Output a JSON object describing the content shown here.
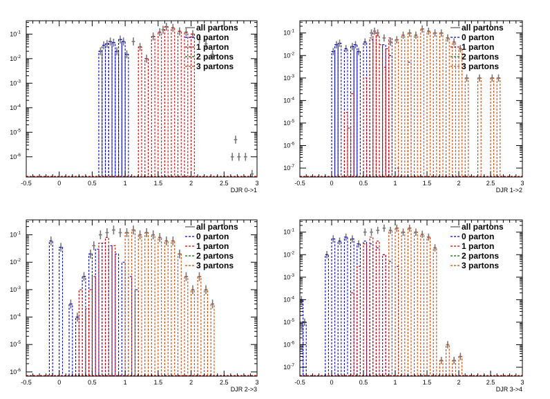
{
  "legend": [
    "all partons",
    "0 parton",
    "1 parton",
    "2 partons",
    "3 partons"
  ],
  "colors": {
    "all": "#777777",
    "p0": "#0000cc",
    "p1": "#cc0000",
    "p2": "#006600",
    "p3": "#cc4400",
    "frame": "#000000"
  },
  "chart_data": [
    {
      "type": "bar",
      "xlabel": "DJR 0->1",
      "xlim": [
        -0.5,
        3
      ],
      "ylog": true,
      "ylim": [
        1.5e-07,
        0.35
      ],
      "x_ticks": [
        "-0.5",
        "0",
        "0.5",
        "1",
        "1.5",
        "2",
        "2.5",
        "3"
      ],
      "y_ticks": [
        {
          "label": "10",
          "exp": "-6",
          "value": 1e-06
        },
        {
          "label": "10",
          "exp": "-5",
          "value": 1e-05
        },
        {
          "label": "10",
          "exp": "-4",
          "value": 0.0001
        },
        {
          "label": "10",
          "exp": "-3",
          "value": 0.001
        },
        {
          "label": "10",
          "exp": "-2",
          "value": 0.01
        },
        {
          "label": "10",
          "exp": "-1",
          "value": 0.1
        }
      ],
      "series": [
        {
          "name": "all partons",
          "key": "all",
          "x": [
            0.6,
            0.65,
            0.7,
            0.75,
            0.8,
            0.85,
            0.9,
            0.95,
            1.0,
            1.1,
            1.2,
            1.3,
            1.4,
            1.5,
            1.55,
            1.6,
            1.7,
            1.8,
            1.9,
            2.0,
            2.1,
            2.2,
            2.3,
            2.6,
            2.65,
            2.7,
            2.8,
            2.9
          ],
          "y": [
            0.02,
            0.035,
            0.04,
            0.05,
            0.045,
            0.02,
            0.06,
            0.05,
            0.015,
            0.05,
            0.03,
            0.01,
            0.08,
            0.12,
            0.15,
            0.2,
            0.18,
            0.13,
            0.12,
            0.1,
            0.06,
            0.04,
            0.015,
            1e-06,
            5e-06,
            1e-06,
            1e-06,
            2e-07
          ]
        },
        {
          "name": "0 parton",
          "key": "p0",
          "x": [
            0.6,
            0.65,
            0.7,
            0.75,
            0.8,
            0.85,
            0.9,
            0.95,
            1.0
          ],
          "y": [
            0.02,
            0.035,
            0.04,
            0.05,
            0.045,
            0.02,
            0.06,
            0.05,
            0.015
          ]
        },
        {
          "name": "1 parton",
          "key": "p1",
          "x": [
            1.2,
            1.3,
            1.4,
            1.5,
            1.6,
            1.7,
            1.8,
            1.9,
            2.0
          ],
          "y": [
            0.03,
            0.01,
            0.08,
            0.12,
            0.2,
            0.18,
            0.13,
            0.12,
            0.1
          ]
        }
      ]
    },
    {
      "type": "bar",
      "xlabel": "DJR 1->2",
      "xlim": [
        -0.5,
        3
      ],
      "ylog": true,
      "ylim": [
        4e-08,
        0.35
      ],
      "x_ticks": [
        "-0.5",
        "0",
        "0.5",
        "1",
        "1.5",
        "2",
        "2.5",
        "3"
      ],
      "y_ticks": [
        {
          "label": "10",
          "exp": "-7",
          "value": 1e-07
        },
        {
          "label": "10",
          "exp": "-6",
          "value": 1e-06
        },
        {
          "label": "10",
          "exp": "-5",
          "value": 1e-05
        },
        {
          "label": "10",
          "exp": "-4",
          "value": 0.0001
        },
        {
          "label": "10",
          "exp": "-3",
          "value": 0.001
        },
        {
          "label": "10",
          "exp": "-2",
          "value": 0.01
        },
        {
          "label": "10",
          "exp": "-1",
          "value": 0.1
        }
      ],
      "series": [
        {
          "name": "all partons",
          "key": "all",
          "x": [
            0.0,
            0.05,
            0.1,
            0.2,
            0.3,
            0.35,
            0.4,
            0.5,
            0.6,
            0.65,
            0.7,
            0.8,
            0.9,
            1.0,
            1.1,
            1.2,
            1.3,
            1.4,
            1.5,
            1.6,
            1.7,
            1.8,
            1.9,
            2.0,
            2.1,
            2.3,
            2.5,
            2.6
          ],
          "y": [
            0.015,
            0.03,
            0.035,
            0.02,
            0.025,
            0.03,
            0.015,
            0.04,
            0.1,
            0.12,
            0.1,
            0.06,
            0.04,
            0.05,
            0.08,
            0.1,
            0.08,
            0.15,
            0.12,
            0.1,
            0.1,
            0.06,
            0.04,
            0.02,
            0.001,
            0.001,
            0.001,
            0.001
          ]
        },
        {
          "name": "0 parton",
          "key": "p0",
          "x": [
            0.0,
            0.05,
            0.1,
            0.2,
            0.3,
            0.35,
            0.4,
            0.5,
            0.6,
            0.8,
            0.9,
            1.0,
            1.2
          ],
          "y": [
            0.015,
            0.03,
            0.035,
            0.02,
            0.025,
            0.03,
            0.015,
            0.04,
            0.05,
            0.03,
            0.01,
            1e-07,
            0.005
          ]
        },
        {
          "name": "1 parton",
          "key": "p1",
          "x": [
            0.2,
            0.25,
            0.3,
            0.5,
            0.6,
            0.65,
            0.7,
            0.75,
            0.8,
            0.85,
            0.9
          ],
          "y": [
            3e-05,
            6e-06,
            0.0002,
            0.001,
            0.06,
            0.1,
            0.08,
            0.03,
            0.003,
            0.02,
            0.06
          ]
        },
        {
          "name": "3 partons",
          "key": "p3",
          "x": [
            1.0,
            1.1,
            1.2,
            1.3,
            1.4,
            1.5,
            1.6,
            1.7,
            1.8,
            1.9,
            2.0,
            2.1,
            2.3,
            2.5,
            2.6
          ],
          "y": [
            0.05,
            0.08,
            0.1,
            0.08,
            0.15,
            0.12,
            0.1,
            0.1,
            0.06,
            0.04,
            0.02,
            0.001,
            0.001,
            0.001,
            0.001
          ]
        }
      ]
    },
    {
      "type": "bar",
      "xlabel": "DJR 2->3",
      "xlim": [
        -0.5,
        3
      ],
      "ylog": true,
      "ylim": [
        7e-07,
        0.35
      ],
      "x_ticks": [
        "-0.5",
        "0",
        "0.5",
        "1",
        "1.5",
        "2",
        "2.5",
        "3"
      ],
      "y_ticks": [
        {
          "label": "10",
          "exp": "-6",
          "value": 1e-06
        },
        {
          "label": "10",
          "exp": "-5",
          "value": 1e-05
        },
        {
          "label": "10",
          "exp": "-4",
          "value": 0.0001
        },
        {
          "label": "10",
          "exp": "-3",
          "value": 0.001
        },
        {
          "label": "10",
          "exp": "-2",
          "value": 0.01
        },
        {
          "label": "10",
          "exp": "-1",
          "value": 0.1
        }
      ],
      "series": [
        {
          "name": "all partons",
          "key": "all",
          "x": [
            -0.15,
            0.0,
            0.15,
            0.25,
            0.35,
            0.45,
            0.5,
            0.6,
            0.7,
            0.8,
            0.9,
            1.0,
            1.1,
            1.2,
            1.3,
            1.4,
            1.5,
            1.6,
            1.7,
            1.8,
            1.9,
            2.0,
            2.1,
            2.2,
            2.3
          ],
          "y": [
            0.06,
            0.035,
            0.0003,
            0.0001,
            0.003,
            0.02,
            0.04,
            0.1,
            0.12,
            0.15,
            0.12,
            0.12,
            0.15,
            0.1,
            0.12,
            0.1,
            0.08,
            0.06,
            0.06,
            0.02,
            0.003,
            0.001,
            0.003,
            0.001,
            0.0003
          ]
        },
        {
          "name": "0 parton",
          "key": "p0",
          "x": [
            -0.15,
            0.0,
            0.15,
            0.25,
            0.35,
            0.45,
            0.55,
            0.65,
            0.75,
            0.85,
            0.95,
            1.05,
            1.15
          ],
          "y": [
            0.06,
            0.035,
            0.0003,
            0.0001,
            0.003,
            0.02,
            0.03,
            0.05,
            0.04,
            0.02,
            0.01,
            0.003,
            0.001
          ]
        },
        {
          "name": "1 parton",
          "key": "p1",
          "x": [
            0.3,
            0.4,
            0.45,
            0.5,
            0.6,
            0.7,
            0.8
          ],
          "y": [
            0.001,
            0.0002,
            0.001,
            0.003,
            0.05,
            0.08,
            0.04
          ]
        },
        {
          "name": "3 partons",
          "key": "p3",
          "x": [
            1.0,
            1.1,
            1.2,
            1.3,
            1.4,
            1.5,
            1.6,
            1.7,
            1.8,
            1.9,
            2.0,
            2.1,
            2.2,
            2.3
          ],
          "y": [
            0.12,
            0.15,
            0.1,
            0.12,
            0.1,
            0.08,
            0.06,
            0.06,
            0.02,
            0.003,
            0.001,
            0.003,
            0.001,
            0.0003
          ]
        }
      ]
    },
    {
      "type": "bar",
      "xlabel": "DJR 3->4",
      "xlim": [
        -0.5,
        3
      ],
      "ylog": true,
      "ylim": [
        4e-08,
        0.35
      ],
      "x_ticks": [
        "-0.5",
        "0",
        "0.5",
        "1",
        "1.5",
        "2",
        "2.5",
        "3"
      ],
      "y_ticks": [
        {
          "label": "10",
          "exp": "-7",
          "value": 1e-07
        },
        {
          "label": "10",
          "exp": "-6",
          "value": 1e-06
        },
        {
          "label": "10",
          "exp": "-5",
          "value": 1e-05
        },
        {
          "label": "10",
          "exp": "-4",
          "value": 0.0001
        },
        {
          "label": "10",
          "exp": "-3",
          "value": 0.001
        },
        {
          "label": "10",
          "exp": "-2",
          "value": 0.01
        },
        {
          "label": "10",
          "exp": "-1",
          "value": 0.1
        }
      ],
      "series": [
        {
          "name": "all partons",
          "key": "all",
          "x": [
            -0.5,
            -0.45,
            -0.1,
            0.0,
            0.1,
            0.2,
            0.3,
            0.4,
            0.5,
            0.6,
            0.7,
            0.8,
            0.9,
            1.0,
            1.1,
            1.2,
            1.3,
            1.4,
            1.5,
            1.6,
            1.7,
            1.8,
            1.9,
            2.0
          ],
          "y": [
            0.0001,
            1e-05,
            0.01,
            0.05,
            0.04,
            0.06,
            0.05,
            0.03,
            0.1,
            0.1,
            0.12,
            0.15,
            0.12,
            0.15,
            0.1,
            0.15,
            0.1,
            0.08,
            0.06,
            0.02,
            2e-07,
            1e-06,
            2e-07,
            3e-07
          ]
        },
        {
          "name": "0 parton",
          "key": "p0",
          "x": [
            -0.5,
            -0.45,
            -0.1,
            0.0,
            0.1,
            0.2,
            0.3,
            0.4,
            0.5,
            0.6,
            0.7,
            0.8,
            0.9,
            1.0
          ],
          "y": [
            0.0001,
            1e-05,
            0.01,
            0.05,
            0.04,
            0.06,
            0.05,
            0.03,
            0.04,
            0.03,
            0.02,
            0.01,
            0.005,
            0.003
          ]
        },
        {
          "name": "1 parton",
          "key": "p1",
          "x": [
            0.3,
            0.4,
            0.5,
            0.6,
            0.7,
            0.8
          ],
          "y": [
            0.0002,
            0.003,
            0.03,
            0.06,
            0.04,
            0.01
          ]
        },
        {
          "name": "3 partons",
          "key": "p3",
          "x": [
            0.9,
            1.0,
            1.1,
            1.2,
            1.3,
            1.4,
            1.5,
            1.6,
            1.7,
            1.8,
            1.9,
            2.0
          ],
          "y": [
            0.12,
            0.15,
            0.1,
            0.15,
            0.1,
            0.08,
            0.06,
            0.02,
            2e-07,
            1e-06,
            2e-07,
            3e-07
          ]
        }
      ]
    }
  ]
}
